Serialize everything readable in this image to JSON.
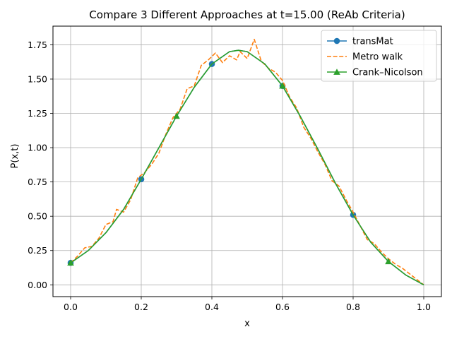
{
  "chart_data": {
    "type": "line",
    "title": "Compare 3 Different Approaches at t=15.00 (ReAb Criteria)",
    "xlabel": "x",
    "ylabel": "P(x,t)",
    "xlim": [
      -0.05,
      1.05
    ],
    "ylim": [
      -0.086,
      1.886
    ],
    "xticks": [
      0.0,
      0.2,
      0.4,
      0.6,
      0.8,
      1.0
    ],
    "xtick_labels": [
      "0.0",
      "0.2",
      "0.4",
      "0.6",
      "0.8",
      "1.0"
    ],
    "yticks": [
      0.0,
      0.25,
      0.5,
      0.75,
      1.0,
      1.25,
      1.5,
      1.75
    ],
    "ytick_labels": [
      "0.00",
      "0.25",
      "0.50",
      "0.75",
      "1.00",
      "1.25",
      "1.50",
      "1.75"
    ],
    "grid": true,
    "legend_position": "top-right",
    "series": [
      {
        "name": "transMat",
        "color": "#1f77b4",
        "style": "solid",
        "marker": "circle",
        "markers_x": [
          0.0,
          0.2,
          0.4,
          0.6,
          0.8
        ],
        "x": [
          0.0,
          0.05,
          0.1,
          0.15,
          0.2,
          0.25,
          0.3,
          0.35,
          0.4,
          0.45,
          0.475,
          0.5,
          0.55,
          0.6,
          0.65,
          0.7,
          0.75,
          0.8,
          0.85,
          0.9,
          0.95,
          1.0
        ],
        "y": [
          0.16,
          0.25,
          0.38,
          0.55,
          0.77,
          1.0,
          1.23,
          1.44,
          1.61,
          1.7,
          1.71,
          1.7,
          1.61,
          1.45,
          1.23,
          0.99,
          0.74,
          0.51,
          0.31,
          0.17,
          0.07,
          0.0
        ]
      },
      {
        "name": "Metro walk",
        "color": "#ff7f0e",
        "style": "dashed",
        "marker": "none",
        "x": [
          0.0,
          0.02,
          0.04,
          0.06,
          0.08,
          0.1,
          0.12,
          0.13,
          0.15,
          0.17,
          0.19,
          0.21,
          0.23,
          0.25,
          0.27,
          0.29,
          0.31,
          0.33,
          0.35,
          0.37,
          0.39,
          0.41,
          0.43,
          0.45,
          0.47,
          0.48,
          0.5,
          0.52,
          0.54,
          0.56,
          0.58,
          0.6,
          0.62,
          0.64,
          0.66,
          0.68,
          0.7,
          0.72,
          0.74,
          0.76,
          0.78,
          0.8,
          0.82,
          0.84,
          0.86,
          0.88,
          0.9,
          0.92,
          0.94,
          0.96,
          0.98,
          1.0
        ],
        "y": [
          0.16,
          0.21,
          0.27,
          0.28,
          0.34,
          0.44,
          0.46,
          0.55,
          0.53,
          0.62,
          0.78,
          0.82,
          0.88,
          0.96,
          1.1,
          1.22,
          1.28,
          1.43,
          1.45,
          1.6,
          1.64,
          1.69,
          1.62,
          1.67,
          1.64,
          1.7,
          1.65,
          1.79,
          1.63,
          1.58,
          1.55,
          1.49,
          1.37,
          1.29,
          1.15,
          1.07,
          0.97,
          0.88,
          0.76,
          0.72,
          0.62,
          0.53,
          0.43,
          0.33,
          0.3,
          0.24,
          0.19,
          0.15,
          0.12,
          0.08,
          0.04,
          0.0
        ]
      },
      {
        "name": "Crank–Nicolson",
        "color": "#2ca02c",
        "style": "solid",
        "marker": "triangle",
        "markers_x": [
          0.0,
          0.3,
          0.6,
          0.9
        ],
        "x": [
          0.0,
          0.05,
          0.1,
          0.15,
          0.2,
          0.25,
          0.3,
          0.35,
          0.4,
          0.45,
          0.475,
          0.5,
          0.55,
          0.6,
          0.65,
          0.7,
          0.75,
          0.8,
          0.85,
          0.9,
          0.95,
          1.0
        ],
        "y": [
          0.16,
          0.25,
          0.38,
          0.55,
          0.77,
          1.0,
          1.23,
          1.44,
          1.61,
          1.7,
          1.71,
          1.7,
          1.61,
          1.45,
          1.23,
          0.99,
          0.74,
          0.51,
          0.31,
          0.17,
          0.07,
          0.0
        ]
      }
    ]
  }
}
